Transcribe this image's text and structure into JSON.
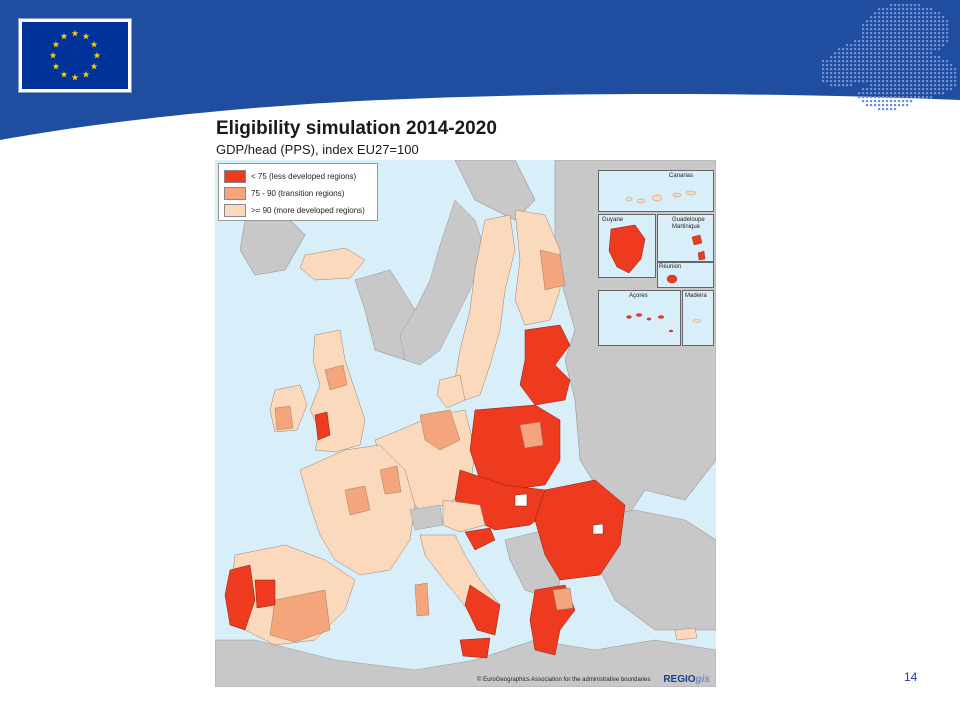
{
  "header": {
    "band_color": "#1f4ea1",
    "flag_blue": "#003399",
    "flag_star_color": "#ffcc00",
    "flag_icon": "eu-flag-icon",
    "decor_icon": "europe-dots-icon"
  },
  "map": {
    "title": "Eligibility simulation 2014-2020",
    "subtitle": "GDP/head (PPS), index EU27=100",
    "sea_color": "#d8eef8",
    "non_eu_color": "#c8c8c8",
    "legend": [
      {
        "label": "< 75 (less developed regions)",
        "color": "#ee3a1e"
      },
      {
        "label": "75 - 90 (transition regions)",
        "color": "#f4a57c"
      },
      {
        "label": ">= 90 (more developed regions)",
        "color": "#fbd9bd"
      }
    ],
    "insets": {
      "canarias": "Canarias",
      "guyane": "Guyane",
      "guadeloupe": "Guadeloupe",
      "martinique": "Martinique",
      "reunion": "Réunion",
      "acores": "Açores",
      "madeira": "Madeira"
    },
    "credit": "© EuroGeographics Association for the administrative boundaries",
    "logo_main": "REGIO",
    "logo_suffix": "gis"
  },
  "page_number": "14"
}
